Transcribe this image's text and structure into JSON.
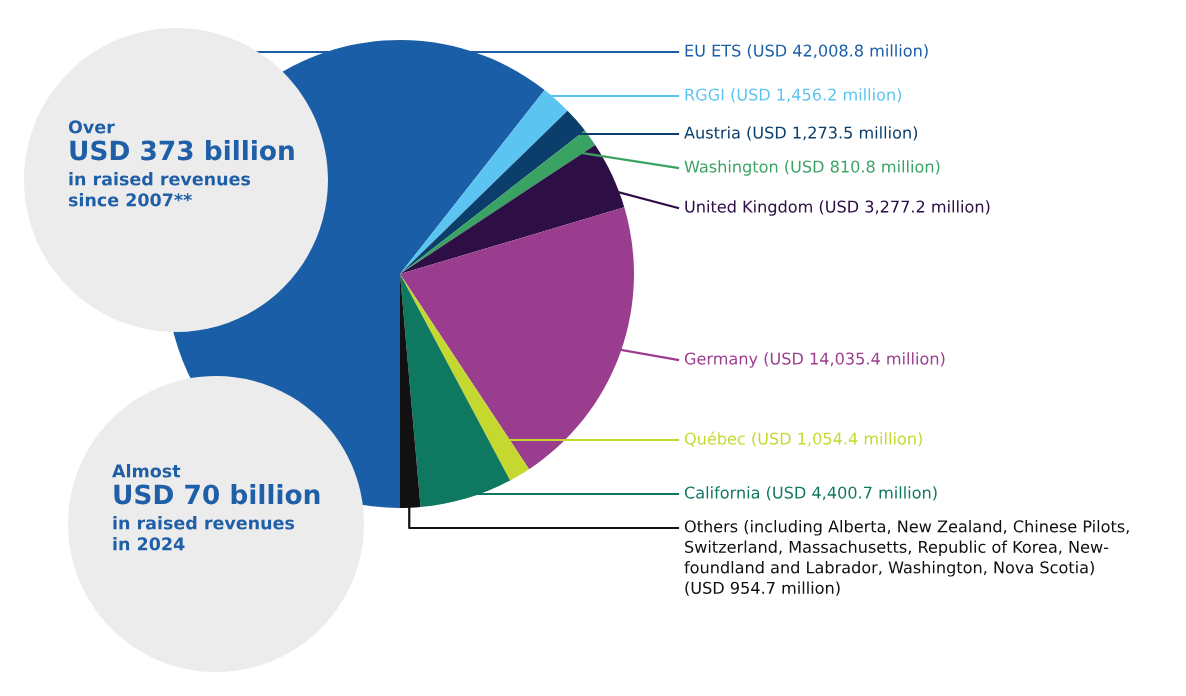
{
  "chart_data": {
    "type": "pie",
    "categories": [
      "EU ETS (USD 42,008.8 million)",
      "RGGI (USD 1,456.2 million)",
      "Austria (USD 1,273.5 million)",
      "Washington (USD 810.8 million)",
      "United Kingdom (USD 3,277.2 million)",
      "Germany (USD 14,035.4 million)",
      "Québec (USD 1,054.4 million)",
      "California (USD 4,400.7 million)",
      "Others (including Alberta, New Zealand, Chinese Pilots,\nSwitzerland, Massachusetts, Republic of Korea, New-\nfoundland and Labrador, Washington, Nova Scotia)\n(USD 954.7 million)"
    ],
    "values": [
      60.6,
      2.1,
      1.8,
      1.2,
      4.7,
      20.3,
      1.5,
      6.4,
      1.4
    ],
    "colors": [
      "#1a5ea8",
      "#5bc4f1",
      "#0b3e6b",
      "#3aa364",
      "#2e0f45",
      "#9b3d8f",
      "#c5d82f",
      "#0f7860",
      "#111111"
    ],
    "annotations": [
      "Over",
      "USD 373 billion",
      "in raised revenues\nsince 2007**",
      "Almost",
      "USD 70 billion",
      "in raised revenues\nin 2024"
    ]
  }
}
